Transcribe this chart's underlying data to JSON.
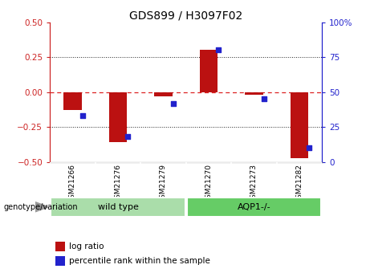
{
  "title": "GDS899 / H3097F02",
  "samples": [
    "GSM21266",
    "GSM21276",
    "GSM21279",
    "GSM21270",
    "GSM21273",
    "GSM21282"
  ],
  "log_ratios": [
    -0.13,
    -0.36,
    -0.03,
    0.305,
    -0.02,
    -0.475
  ],
  "percentile_ranks": [
    33,
    18,
    42,
    80,
    45,
    10
  ],
  "bar_color": "#bb1111",
  "dot_color": "#2222cc",
  "left_axis_color": "#cc2222",
  "right_axis_color": "#2222cc",
  "ylim_left": [
    -0.5,
    0.5
  ],
  "ylim_right": [
    0,
    100
  ],
  "hline_color": "#dd2222",
  "grid_color": "#222222",
  "bg_color": "#ffffff",
  "plot_bg": "#ffffff",
  "label_area_color": "#c8c8c8",
  "wt_box_color": "#aaddaa",
  "aqp_box_color": "#66cc66",
  "legend_log_ratio": "log ratio",
  "legend_percentile": "percentile rank within the sample",
  "genotype_label": "genotype/variation",
  "wt_label": "wild type",
  "aqp_label": "AQP1-/-"
}
